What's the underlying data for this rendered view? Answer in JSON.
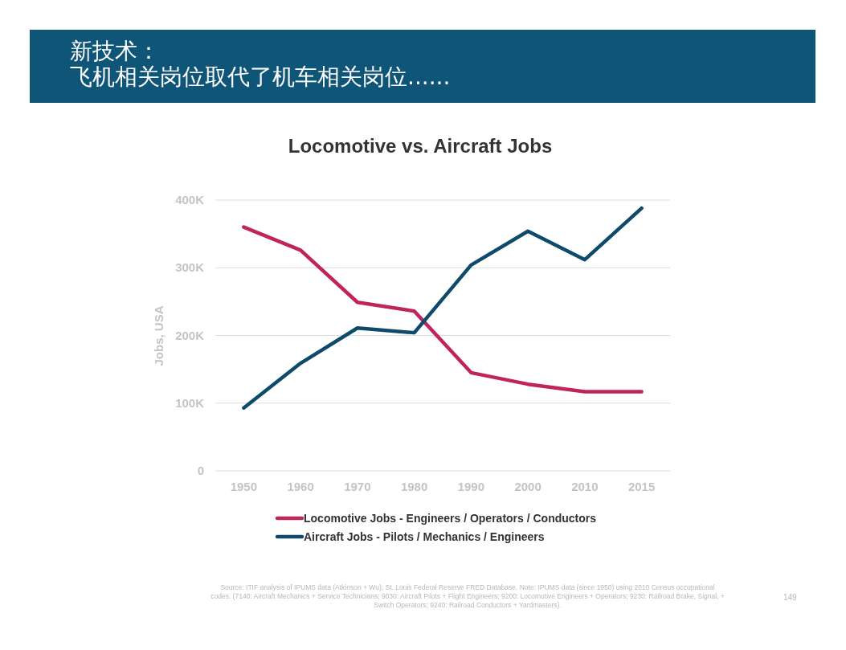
{
  "chart_data": {
    "type": "line",
    "title": "新技术：飞机相关岗位取代了机车相关岗位......",
    "subtitle": "Locomotive vs. Aircraft Jobs",
    "ylabel": "Jobs, USA",
    "categories": [
      "1950",
      "1960",
      "1970",
      "1980",
      "1990",
      "2000",
      "2010",
      "2015"
    ],
    "series": [
      {
        "name": "Locomotive Jobs - Engineers / Operators / Conductors",
        "color": "#c0245c",
        "values": [
          360000,
          326000,
          249000,
          236000,
          145000,
          128000,
          117000,
          117000
        ]
      },
      {
        "name": "Aircraft Jobs - Pilots / Mechanics / Engineers",
        "color": "#0d4a6b",
        "values": [
          93000,
          159000,
          211000,
          204000,
          304000,
          354000,
          312000,
          388000
        ]
      }
    ],
    "ylim": [
      0,
      400000
    ],
    "yticks": [
      0,
      {
        "value": 100000,
        "label": "100K"
      },
      {
        "value": 200000,
        "label": "200K"
      },
      {
        "value": 300000,
        "label": "300K"
      },
      {
        "value": 400000,
        "label": "400K"
      }
    ],
    "grid": "y",
    "legend": "bottom",
    "marker": "none",
    "line_style": "solid",
    "annotations": [
      "Source: ITIF analysis of IPUMS data (Atkinson + Wu); St. Louis Federal Reserve FRED Database.  Note: IPUMS data (since 1950) using 2010 Census occupational codes.  (7140: Aircraft Mechanics + Service Technicians; 9030: Aircraft Pilots + Flight Engineers; 9200: Locomotive Engineers + Operators; 9230: Railroad Brake, Signal, + Switch Operators; 9240: Railroad Conductors + Yardmasters).",
      "149"
    ]
  }
}
